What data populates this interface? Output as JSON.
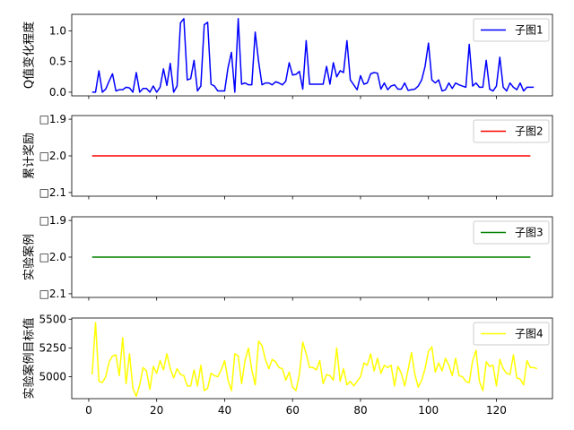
{
  "chart_data": [
    {
      "type": "line",
      "ylabel": "Q值变化程度",
      "legend": "子图1",
      "legend_position": "top-right",
      "color": "#0000ff",
      "xlim": [
        -5,
        136.5
      ],
      "ylim": [
        -0.06,
        1.27
      ],
      "yticks": [
        0.0,
        0.5,
        1.0
      ],
      "ytick_labels": [
        "0.0",
        "0.5",
        "1.0"
      ],
      "x_start": 1,
      "values": [
        0.0,
        0.0,
        0.35,
        0.0,
        0.05,
        0.18,
        0.3,
        0.02,
        0.04,
        0.04,
        0.08,
        0.07,
        0.0,
        0.32,
        0.0,
        0.06,
        0.06,
        0.0,
        0.1,
        0.0,
        0.08,
        0.38,
        0.11,
        0.47,
        0.0,
        0.1,
        1.13,
        1.2,
        0.2,
        0.22,
        0.52,
        0.02,
        0.1,
        1.1,
        1.14,
        0.13,
        0.1,
        0.02,
        0.02,
        0.02,
        0.4,
        0.65,
        0.0,
        1.2,
        0.13,
        0.15,
        0.12,
        0.12,
        0.98,
        0.5,
        0.12,
        0.15,
        0.15,
        0.12,
        0.17,
        0.15,
        0.12,
        0.18,
        0.48,
        0.28,
        0.29,
        0.34,
        0.05,
        0.84,
        0.13,
        0.13,
        0.13,
        0.13,
        0.13,
        0.42,
        0.13,
        0.48,
        0.25,
        0.35,
        0.32,
        0.84,
        0.2,
        0.12,
        0.04,
        0.27,
        0.13,
        0.15,
        0.3,
        0.32,
        0.31,
        0.05,
        0.15,
        0.04,
        0.1,
        0.12,
        0.05,
        0.05,
        0.15,
        0.03,
        0.04,
        0.05,
        0.1,
        0.2,
        0.42,
        0.8,
        0.2,
        0.15,
        0.2,
        0.02,
        0.04,
        0.15,
        0.06,
        0.15,
        0.12,
        0.1,
        0.08,
        0.78,
        0.1,
        0.15,
        0.08,
        0.08,
        0.52,
        0.05,
        0.02,
        0.1,
        0.57,
        0.08,
        0.02,
        0.15,
        0.08,
        0.04,
        0.15,
        0.02,
        0.08,
        0.08,
        0.08
      ]
    },
    {
      "type": "line",
      "ylabel": "累计奖励",
      "legend": "子图2",
      "legend_position": "top-right",
      "color": "#ff0000",
      "xlim": [
        -5,
        136.5
      ],
      "ylim": [
        -2.11,
        -1.89
      ],
      "yticks": [
        -1.9,
        -2.0,
        -2.1
      ],
      "ytick_labels": [
        "□1.9",
        "□2.0",
        "□2.1"
      ],
      "x": [
        1,
        130
      ],
      "values": [
        -2.0,
        -2.0
      ]
    },
    {
      "type": "line",
      "ylabel": "实验案例",
      "legend": "子图3",
      "legend_position": "top-right",
      "color": "#008000",
      "xlim": [
        -5,
        136.5
      ],
      "ylim": [
        -2.11,
        -1.89
      ],
      "yticks": [
        -1.9,
        -2.0,
        -2.1
      ],
      "ytick_labels": [
        "□1.9",
        "□2.0",
        "□2.1"
      ],
      "x": [
        1,
        130
      ],
      "values": [
        -2.0,
        -2.0
      ]
    },
    {
      "type": "line",
      "ylabel": "实验案例目标值",
      "legend": "子图4",
      "legend_position": "top-right",
      "color": "#ffff00",
      "xlim": [
        -5,
        136.5
      ],
      "ylim": [
        4810,
        5510
      ],
      "yticks": [
        5000,
        5250,
        5500
      ],
      "ytick_labels": [
        "5000",
        "5250",
        "5500"
      ],
      "xticks": [
        0,
        20,
        40,
        60,
        80,
        100,
        120
      ],
      "xtick_labels": [
        "0",
        "20",
        "40",
        "60",
        "80",
        "100",
        "120"
      ],
      "x_start": 1,
      "values": [
        5020,
        5470,
        4960,
        4950,
        5000,
        5130,
        5180,
        5190,
        5010,
        5340,
        4940,
        5200,
        4900,
        4830,
        4930,
        5080,
        5050,
        4890,
        5090,
        5030,
        5140,
        5060,
        5200,
        5070,
        4990,
        5070,
        5020,
        5010,
        4920,
        4920,
        5060,
        4920,
        5100,
        4880,
        4900,
        5030,
        5010,
        5000,
        5060,
        5140,
        4970,
        4880,
        5200,
        5180,
        4940,
        5140,
        5250,
        5060,
        4930,
        5310,
        5270,
        5150,
        5070,
        5150,
        5130,
        5080,
        5070,
        4970,
        5040,
        4910,
        4880,
        5020,
        5300,
        5200,
        5080,
        5080,
        5060,
        5140,
        4940,
        5020,
        5010,
        4970,
        5250,
        4960,
        5070,
        4930,
        4960,
        4920,
        4960,
        5000,
        5120,
        5100,
        5200,
        5050,
        5160,
        5030,
        5100,
        5080,
        5100,
        4920,
        5090,
        5030,
        4920,
        5060,
        5210,
        5020,
        4910,
        4970,
        5070,
        5220,
        5260,
        5040,
        5120,
        5050,
        5160,
        5100,
        5010,
        5160,
        5010,
        5000,
        4960,
        4950,
        5140,
        5230,
        4960,
        4880,
        5130,
        5090,
        5100,
        4920,
        5150,
        5070,
        5030,
        5020,
        5190,
        4990,
        4980,
        4930,
        5140,
        5080,
        5080,
        5070
      ]
    }
  ]
}
